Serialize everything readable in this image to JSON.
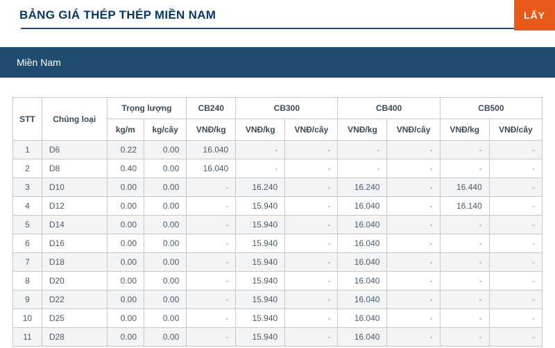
{
  "header": {
    "title": "BẢNG GIÁ THÉP THÉP MIỀN NAM",
    "button_label": "LẤY"
  },
  "tab": {
    "label": "Miền Nam"
  },
  "table": {
    "headers": {
      "stt": "STT",
      "category": "Chủng loại",
      "weight_group": "Trọng lượng",
      "kg_m": "kg/m",
      "kg_cay": "kg/cây",
      "cb240": "CB240",
      "cb300": "CB300",
      "cb400": "CB400",
      "cb500": "CB500",
      "vnd_kg": "VNĐ/kg",
      "vnd_cay": "VNĐ/cây"
    },
    "rows": [
      {
        "stt": "1",
        "cat": "D6",
        "kgm": "0.22",
        "kgc": "0.00",
        "c240": "16.040",
        "c300k": "-",
        "c300c": "-",
        "c400k": "-",
        "c400c": "-",
        "c500k": "-",
        "c500c": "-"
      },
      {
        "stt": "2",
        "cat": "D8",
        "kgm": "0.40",
        "kgc": "0.00",
        "c240": "16.040",
        "c300k": "-",
        "c300c": "-",
        "c400k": "-",
        "c400c": "-",
        "c500k": "-",
        "c500c": "-"
      },
      {
        "stt": "3",
        "cat": "D10",
        "kgm": "0.00",
        "kgc": "0.00",
        "c240": "-",
        "c300k": "16.240",
        "c300c": "-",
        "c400k": "16.240",
        "c400c": "-",
        "c500k": "16.440",
        "c500c": "-"
      },
      {
        "stt": "4",
        "cat": "D12",
        "kgm": "0.00",
        "kgc": "0.00",
        "c240": "-",
        "c300k": "15.940",
        "c300c": "-",
        "c400k": "16.040",
        "c400c": "-",
        "c500k": "16.140",
        "c500c": "-"
      },
      {
        "stt": "5",
        "cat": "D14",
        "kgm": "0.00",
        "kgc": "0.00",
        "c240": "-",
        "c300k": "15.940",
        "c300c": "-",
        "c400k": "16.040",
        "c400c": "-",
        "c500k": "-",
        "c500c": "-"
      },
      {
        "stt": "6",
        "cat": "D16",
        "kgm": "0.00",
        "kgc": "0.00",
        "c240": "-",
        "c300k": "15.940",
        "c300c": "-",
        "c400k": "16.040",
        "c400c": "-",
        "c500k": "-",
        "c500c": "-"
      },
      {
        "stt": "7",
        "cat": "D18",
        "kgm": "0.00",
        "kgc": "0.00",
        "c240": "-",
        "c300k": "15.940",
        "c300c": "-",
        "c400k": "16.040",
        "c400c": "-",
        "c500k": "-",
        "c500c": "-"
      },
      {
        "stt": "8",
        "cat": "D20",
        "kgm": "0.00",
        "kgc": "0.00",
        "c240": "-",
        "c300k": "15.940",
        "c300c": "-",
        "c400k": "16.040",
        "c400c": "-",
        "c500k": "-",
        "c500c": "-"
      },
      {
        "stt": "9",
        "cat": "D22",
        "kgm": "0.00",
        "kgc": "0.00",
        "c240": "-",
        "c300k": "15.940",
        "c300c": "-",
        "c400k": "16.040",
        "c400c": "-",
        "c500k": "-",
        "c500c": "-"
      },
      {
        "stt": "10",
        "cat": "D25",
        "kgm": "0.00",
        "kgc": "0.00",
        "c240": "-",
        "c300k": "15.940",
        "c300c": "-",
        "c400k": "16.040",
        "c400c": "-",
        "c500k": "-",
        "c500c": "-"
      },
      {
        "stt": "11",
        "cat": "D28",
        "kgm": "0.00",
        "kgc": "0.00",
        "c240": "-",
        "c300k": "15.940",
        "c300c": "-",
        "c400k": "16.040",
        "c400c": "-",
        "c500k": "-",
        "c500c": "-"
      }
    ]
  },
  "colors": {
    "title": "#0a3866",
    "tab_bg": "#1f4d6f",
    "button_bg": "#e85a1a",
    "border": "#c8c8c8",
    "row_alt": "#f2f4f6"
  }
}
